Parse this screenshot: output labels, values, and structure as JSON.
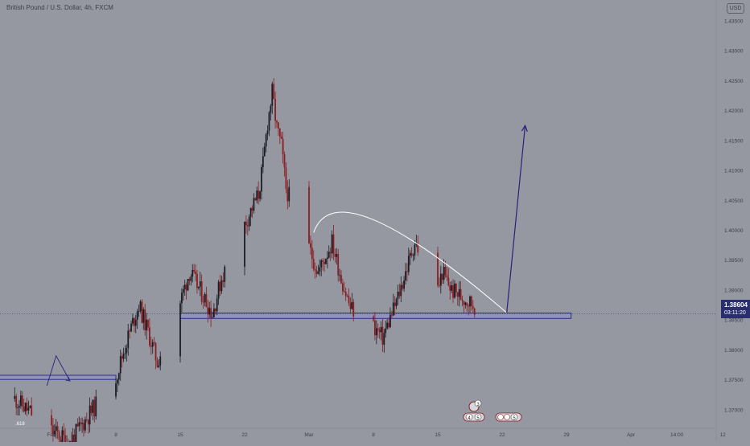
{
  "header": {
    "symbol_title": "British Pound / U.S. Dollar, 4h, FXCM",
    "currency": "USD"
  },
  "current_price": {
    "value": "1.38604",
    "countdown": "03:11:20"
  },
  "fib_label": ".618",
  "event_markers": {
    "top": "3",
    "bottom_left": "4",
    "bottom_mid": "5",
    "right": "5"
  },
  "colors": {
    "background": "#9598a1",
    "up_candle": "#1c1c24",
    "down_candle": "#8b1e22",
    "zone_fill": "#8e91c5",
    "zone_border": "#2c2f8c",
    "arrow": "#2a1f7a",
    "arc": "#ffffff",
    "price_tag": "#2a2e6e"
  },
  "chart_data": {
    "type": "candlestick",
    "title": "British Pound / U.S. Dollar, 4h, FXCM",
    "xlabel": "",
    "ylabel": "",
    "y_axis": {
      "ticks": [
        "1.43500",
        "1.43000",
        "1.42500",
        "1.42000",
        "1.41500",
        "1.41000",
        "1.40500",
        "1.40000",
        "1.39500",
        "1.39000",
        "1.38500",
        "1.38000",
        "1.37500",
        "1.37000",
        "1.36500"
      ],
      "ylim": [
        1.36334,
        1.43739
      ]
    },
    "x_axis": {
      "ticks": [
        "Feb",
        "8",
        "15",
        "22",
        "Mar",
        "8",
        "15",
        "22",
        "29",
        "Apr",
        "14:00",
        "12"
      ]
    },
    "grid": false,
    "price_path": [
      [
        "2021-01-28 00:00",
        1.3718
      ],
      [
        "2021-02-01 00:00",
        1.3665
      ],
      [
        "2021-02-03 00:00",
        1.3645
      ],
      [
        "2021-02-05 00:00",
        1.369
      ],
      [
        "2021-02-08 00:00",
        1.3755
      ],
      [
        "2021-02-09 12:00",
        1.383
      ],
      [
        "2021-02-10 12:00",
        1.3875
      ],
      [
        "2021-02-11 12:00",
        1.383
      ],
      [
        "2021-02-12 12:00",
        1.378
      ],
      [
        "2021-02-15 00:00",
        1.388
      ],
      [
        "2021-02-16 00:00",
        1.393
      ],
      [
        "2021-02-17 12:00",
        1.389
      ],
      [
        "2021-02-18 12:00",
        1.386
      ],
      [
        "2021-02-19 12:00",
        1.392
      ],
      [
        "2021-02-22 00:00",
        1.401
      ],
      [
        "2021-02-23 12:00",
        1.406
      ],
      [
        "2021-02-24 00:00",
        1.411
      ],
      [
        "2021-02-24 12:00",
        1.418
      ],
      [
        "2021-02-25 00:00",
        1.423
      ],
      [
        "2021-02-25 12:00",
        1.417
      ],
      [
        "2021-02-26 00:00",
        1.414
      ],
      [
        "2021-02-26 12:00",
        1.407
      ],
      [
        "2021-03-01 00:00",
        1.397
      ],
      [
        "2021-03-02 00:00",
        1.393
      ],
      [
        "2021-03-03 12:00",
        1.398
      ],
      [
        "2021-03-04 12:00",
        1.392
      ],
      [
        "2021-03-05 12:00",
        1.387
      ],
      [
        "2021-03-08 00:00",
        1.384
      ],
      [
        "2021-03-09 00:00",
        1.382
      ],
      [
        "2021-03-10 12:00",
        1.388
      ],
      [
        "2021-03-11 12:00",
        1.393
      ],
      [
        "2021-03-12 12:00",
        1.398
      ],
      [
        "2021-03-15 00:00",
        1.39
      ],
      [
        "2021-03-15 12:00",
        1.393
      ],
      [
        "2021-03-16 12:00",
        1.39
      ],
      [
        "2021-03-17 12:00",
        1.389
      ],
      [
        "2021-03-18 12:00",
        1.388
      ],
      [
        "2021-03-19 12:00",
        1.387
      ],
      [
        "2021-03-22 00:00",
        1.386
      ]
    ],
    "annotations": {
      "demand_zone": {
        "from": "2021-02-15 00:00",
        "to": "2021-03-29 12:00",
        "top": 1.38615,
        "bottom": 1.38525
      },
      "left_zone": {
        "from": "2021-01-25 00:00",
        "to": "2021-02-08 00:00",
        "top": 1.37575,
        "bottom": 1.37505
      },
      "arc": {
        "from": [
          "2021-03-01 12:00",
          1.3996
        ],
        "apex": [
          "2021-03-08 00:00",
          1.40175
        ],
        "to": [
          "2021-03-22 12:00",
          1.3862
        ]
      },
      "projection_arrow": {
        "from": [
          "2021-03-22 12:00",
          1.3862
        ],
        "to": [
          "2021-03-24 12:00",
          1.4175
        ]
      },
      "small_zigzag": [
        [
          "2021-01-31 12:00",
          1.374
        ],
        [
          "2021-02-01 12:00",
          1.379
        ],
        [
          "2021-02-03 00:00",
          1.3748
        ]
      ],
      "current_price_line": 1.38604
    }
  }
}
